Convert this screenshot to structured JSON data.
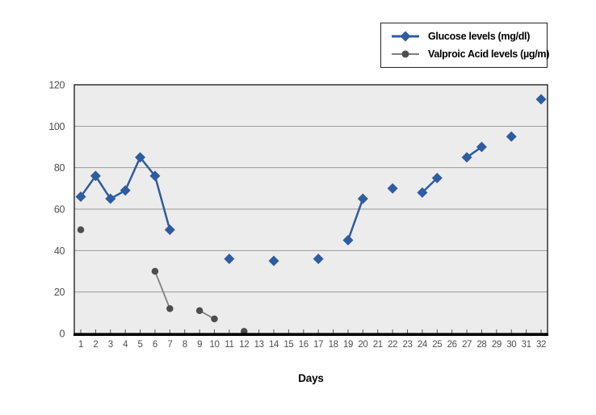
{
  "chart_data": {
    "type": "line",
    "title": "",
    "xlabel": "Days",
    "ylabel": "",
    "xlim": [
      0.5,
      32.5
    ],
    "ylim": [
      0,
      120
    ],
    "x_ticks": [
      1,
      2,
      3,
      4,
      5,
      6,
      7,
      8,
      9,
      10,
      11,
      12,
      13,
      14,
      15,
      16,
      17,
      18,
      19,
      20,
      21,
      22,
      23,
      24,
      25,
      26,
      27,
      28,
      29,
      30,
      31,
      32
    ],
    "y_ticks": [
      0,
      20,
      40,
      60,
      80,
      100,
      120
    ],
    "grid": "horizontal",
    "legend_position": "top-right",
    "plot_bg": "#ececec",
    "grid_color": "#9a9a9a",
    "axis_color": "#000000",
    "tick_label_color": "#4d4d4d",
    "series": [
      {
        "name": "Glucose levels (mg/dl)",
        "marker": "diamond",
        "marker_color": "#2e5c9e",
        "line_color": "#2e5c9e",
        "marker_size": 13,
        "line_width": 2.5,
        "segments": [
          [
            [
              1,
              66
            ],
            [
              2,
              76
            ],
            [
              3,
              65
            ],
            [
              4,
              69
            ],
            [
              5,
              85
            ],
            [
              6,
              76
            ],
            [
              7,
              50
            ]
          ],
          [
            [
              11,
              36
            ]
          ],
          [
            [
              14,
              35
            ]
          ],
          [
            [
              17,
              36
            ]
          ],
          [
            [
              19,
              45
            ],
            [
              20,
              65
            ]
          ],
          [
            [
              22,
              70
            ]
          ],
          [
            [
              24,
              68
            ],
            [
              25,
              75
            ]
          ],
          [
            [
              27,
              85
            ],
            [
              28,
              90
            ]
          ],
          [
            [
              30,
              95
            ]
          ],
          [
            [
              32,
              113
            ]
          ]
        ]
      },
      {
        "name": "Valproic Acid levels (µg/m)",
        "marker": "circle",
        "marker_color": "#4d4d4d",
        "line_color": "#808080",
        "marker_size": 8.5,
        "line_width": 1.8,
        "segments": [
          [
            [
              1,
              50
            ]
          ],
          [
            [
              6,
              30
            ],
            [
              7,
              12
            ]
          ],
          [
            [
              9,
              11
            ],
            [
              10,
              7
            ]
          ],
          [
            [
              12,
              1
            ]
          ]
        ]
      }
    ]
  }
}
